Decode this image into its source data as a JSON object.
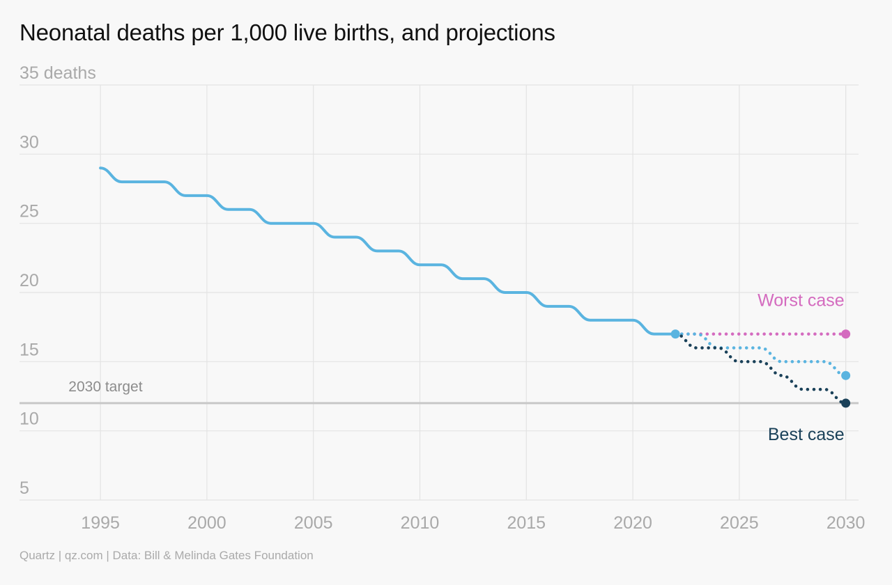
{
  "chart_data": {
    "type": "line",
    "title": "Neonatal deaths per 1,000 live births, and projections",
    "y_unit_label": "35 deaths",
    "source": "Quartz | qz.com | Data: Bill & Melinda Gates Foundation",
    "xlim": [
      1991.2,
      2030.6
    ],
    "ylim": [
      5,
      35
    ],
    "x_ticks": [
      {
        "value": 1995,
        "label": "1995"
      },
      {
        "value": 2000,
        "label": "2000"
      },
      {
        "value": 2005,
        "label": "2005"
      },
      {
        "value": 2010,
        "label": "2010"
      },
      {
        "value": 2015,
        "label": "2015"
      },
      {
        "value": 2020,
        "label": "2020"
      },
      {
        "value": 2025,
        "label": "2025"
      },
      {
        "value": 2030,
        "label": "2030"
      }
    ],
    "y_ticks": [
      {
        "value": 10,
        "label": "10"
      },
      {
        "value": 15,
        "label": "15"
      },
      {
        "value": 20,
        "label": "20"
      },
      {
        "value": 25,
        "label": "25"
      },
      {
        "value": 30,
        "label": "30"
      },
      {
        "value": 35,
        "label": "35 deaths"
      }
    ],
    "grid": true,
    "target": {
      "value": 12,
      "label": "2030 target",
      "color": "#c8c8c8",
      "label_color": "#8c8c8c"
    },
    "series": [
      {
        "key": "historical",
        "color": "#5ab4e0",
        "style": "solid",
        "x": [
          1995,
          1996,
          1997,
          1998,
          1999,
          2000,
          2001,
          2002,
          2003,
          2004,
          2005,
          2006,
          2007,
          2008,
          2009,
          2010,
          2011,
          2012,
          2013,
          2014,
          2015,
          2016,
          2017,
          2018,
          2019,
          2020,
          2021,
          2022
        ],
        "y": [
          29,
          28,
          28,
          28,
          27,
          27,
          26,
          26,
          25,
          25,
          25,
          24,
          24,
          23,
          23,
          22,
          22,
          21,
          21,
          20,
          20,
          19,
          19,
          18,
          18,
          18,
          17,
          17
        ],
        "start_marker": false,
        "end_marker": true
      },
      {
        "key": "worst",
        "name": "Worst case",
        "color": "#d46bbf",
        "style": "dotted",
        "x": [
          2022,
          2023,
          2024,
          2025,
          2026,
          2027,
          2028,
          2029,
          2030
        ],
        "y": [
          17,
          17,
          17,
          17,
          17,
          17,
          17,
          17,
          17
        ],
        "end_marker": true
      },
      {
        "key": "mid",
        "color": "#5ab4e0",
        "style": "dotted",
        "x": [
          2022,
          2023,
          2024,
          2025,
          2026,
          2027,
          2028,
          2029,
          2030
        ],
        "y": [
          17,
          17,
          16,
          16,
          16,
          15,
          15,
          15,
          14
        ],
        "end_marker": true
      },
      {
        "key": "best",
        "name": "Best case",
        "color": "#1a4159",
        "style": "dotted",
        "x": [
          2022,
          2023,
          2024,
          2025,
          2026,
          2027,
          2028,
          2029,
          2030
        ],
        "y": [
          17,
          16,
          16,
          15,
          15,
          14,
          13,
          13,
          12
        ],
        "end_marker": true
      }
    ],
    "labels": [
      {
        "text": "Worst case",
        "color": "#d46bbf",
        "anchor_series": "worst",
        "position": "above-end"
      },
      {
        "text": "Best case",
        "color": "#1a4159",
        "anchor_series": "best",
        "position": "below-end"
      }
    ]
  }
}
